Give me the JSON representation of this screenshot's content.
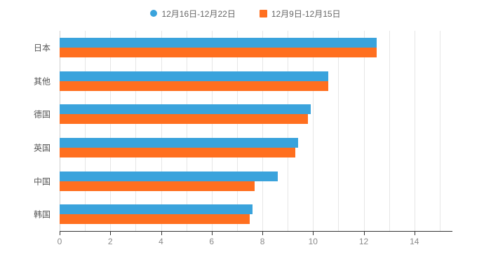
{
  "legend": {
    "items": [
      {
        "label": "12月16日-12月22日",
        "color": "#3AA3DC",
        "marker": "circle"
      },
      {
        "label": "12月9日-12月15日",
        "color": "#FF6F1F",
        "marker": "square"
      }
    ]
  },
  "chart_data": {
    "type": "bar",
    "orientation": "horizontal",
    "title": "",
    "xlabel": "",
    "ylabel": "",
    "categories": [
      "日本",
      "其他",
      "德国",
      "英国",
      "中国",
      "韩国"
    ],
    "series": [
      {
        "name": "12月16日-12月22日",
        "color": "#3AA3DC",
        "values": [
          12.5,
          10.6,
          9.9,
          9.4,
          8.6,
          7.6
        ]
      },
      {
        "name": "12月9日-12月15日",
        "color": "#FF6F1F",
        "values": [
          12.5,
          10.6,
          9.8,
          9.3,
          7.7,
          7.5
        ]
      }
    ],
    "xlim": [
      0,
      15.5
    ],
    "xticks": [
      0,
      2,
      4,
      6,
      8,
      10,
      12,
      14
    ],
    "gridline_interval": 1,
    "gridline_max": 15,
    "grid": true,
    "legend_position": "top",
    "colors": {
      "grid": "#e6e6e6",
      "axis": "#333333",
      "tick_label": "#8a8a8a",
      "category_label": "#555555"
    }
  }
}
